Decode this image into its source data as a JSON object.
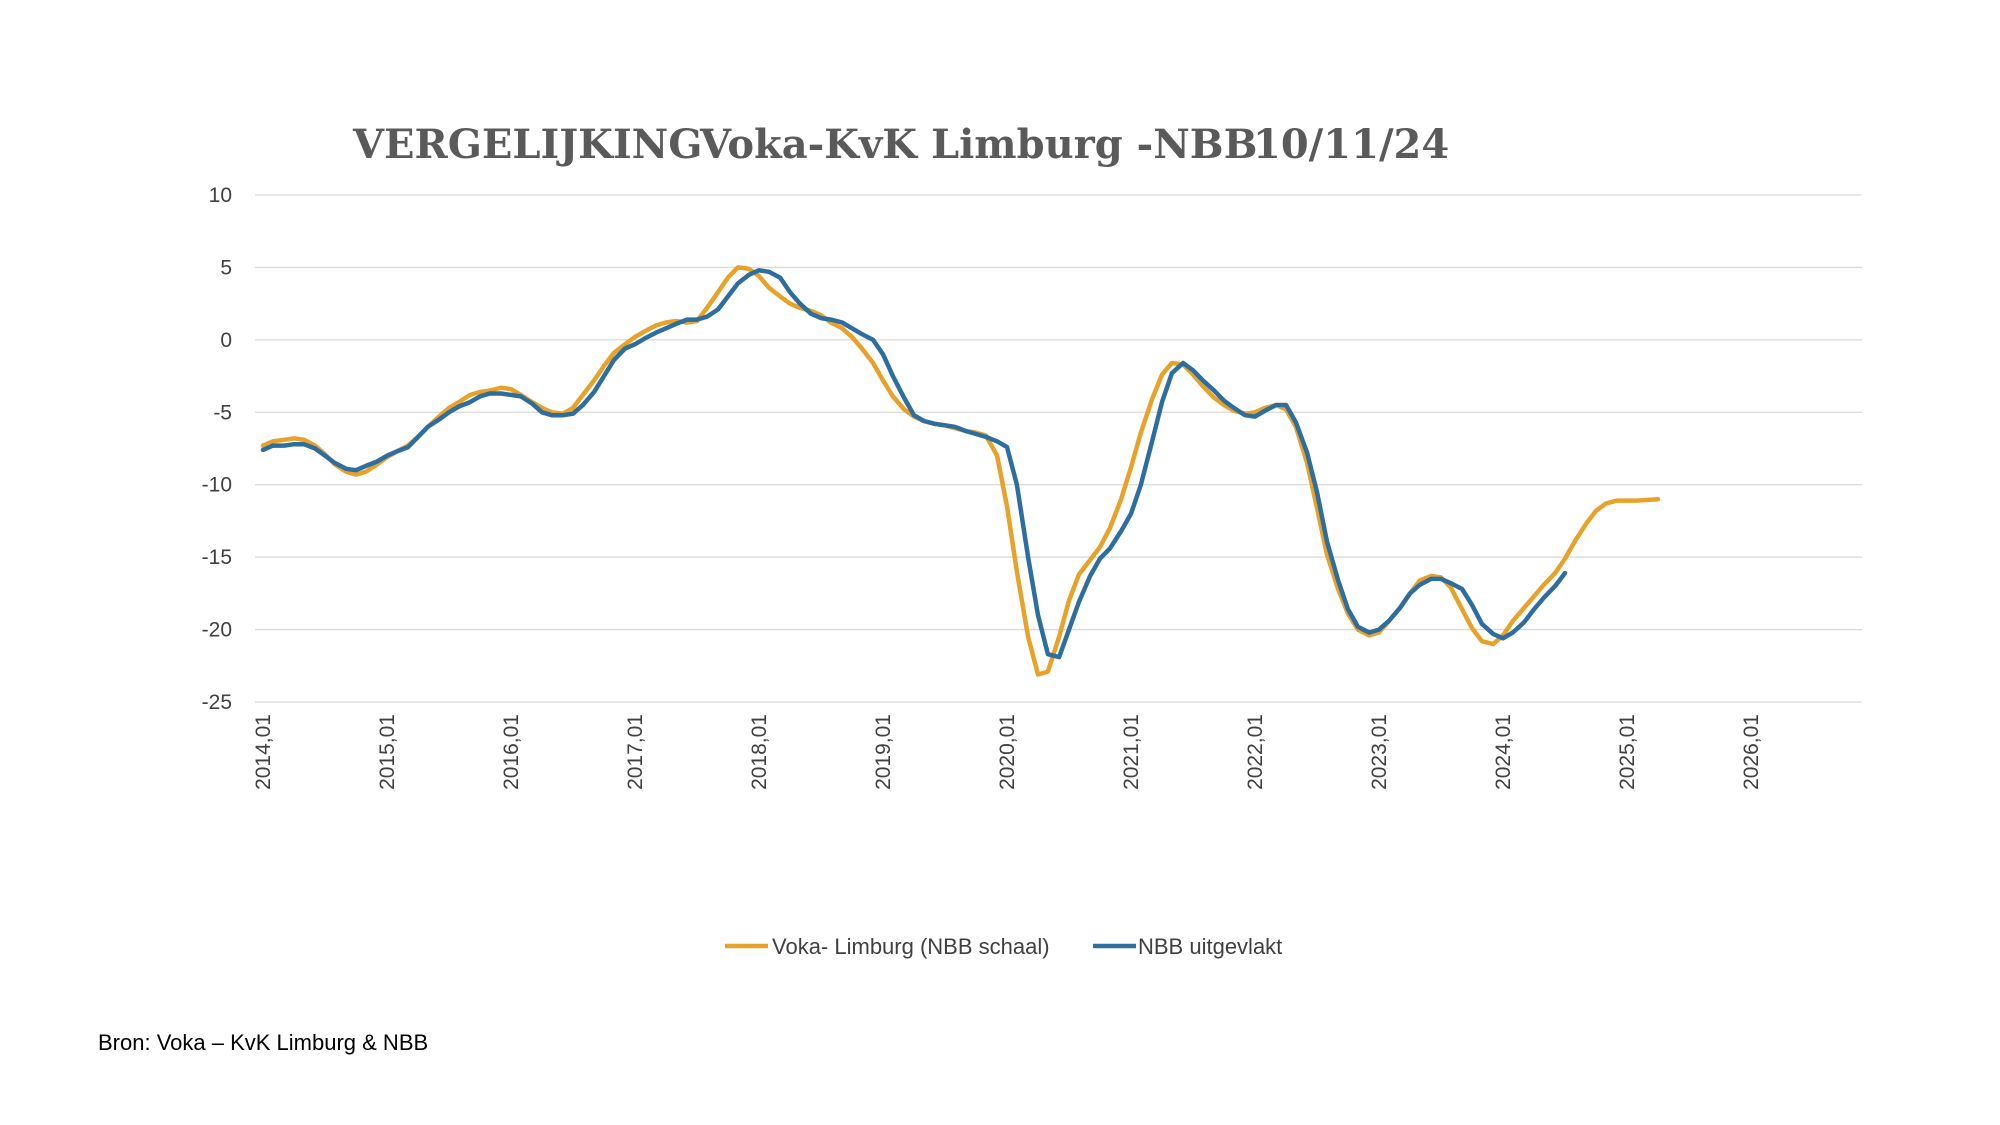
{
  "source": "Bron: Voka – KvK Limburg & NBB",
  "chart_data": {
    "type": "line",
    "title_parts": [
      "VERGELIJKING",
      "Voka-KvK Limburg -NBB",
      "10/11/24"
    ],
    "xlabel": "",
    "ylabel": "",
    "ylim": [
      -25,
      10
    ],
    "yticks": [
      10,
      5,
      0,
      -5,
      -10,
      -15,
      -20,
      -25
    ],
    "x_ticks": [
      "2014,01",
      "2015,01",
      "2016,01",
      "2017,01",
      "2018,01",
      "2019,01",
      "2020,01",
      "2021,01",
      "2022,01",
      "2023,01",
      "2024,01",
      "2025,01",
      "2026,01"
    ],
    "x_range": [
      2014.0,
      2027.0
    ],
    "grid": "horizontal",
    "legend_position": "bottom",
    "colors": {
      "voka": "#e8a22a",
      "nbb": "#2e6e9e",
      "grid": "#d9d9d9",
      "title": "#5a5a5a"
    },
    "series": [
      {
        "name": "Voka- Limburg (NBB schaal)",
        "color": "#e8a22a",
        "points": [
          [
            2014.0,
            -7.3
          ],
          [
            2014.08,
            -7.0
          ],
          [
            2014.17,
            -6.9
          ],
          [
            2014.25,
            -6.8
          ],
          [
            2014.33,
            -6.9
          ],
          [
            2014.42,
            -7.3
          ],
          [
            2014.5,
            -7.9
          ],
          [
            2014.58,
            -8.6
          ],
          [
            2014.67,
            -9.1
          ],
          [
            2014.75,
            -9.3
          ],
          [
            2014.83,
            -9.1
          ],
          [
            2014.92,
            -8.6
          ],
          [
            2015.0,
            -8.1
          ],
          [
            2015.08,
            -7.7
          ],
          [
            2015.17,
            -7.3
          ],
          [
            2015.25,
            -6.7
          ],
          [
            2015.33,
            -6.0
          ],
          [
            2015.42,
            -5.3
          ],
          [
            2015.5,
            -4.7
          ],
          [
            2015.58,
            -4.3
          ],
          [
            2015.67,
            -3.8
          ],
          [
            2015.75,
            -3.6
          ],
          [
            2015.83,
            -3.5
          ],
          [
            2015.92,
            -3.3
          ],
          [
            2016.0,
            -3.4
          ],
          [
            2016.08,
            -3.8
          ],
          [
            2016.17,
            -4.3
          ],
          [
            2016.25,
            -4.7
          ],
          [
            2016.33,
            -5.0
          ],
          [
            2016.42,
            -5.1
          ],
          [
            2016.5,
            -4.7
          ],
          [
            2016.58,
            -3.8
          ],
          [
            2016.67,
            -2.8
          ],
          [
            2016.75,
            -1.8
          ],
          [
            2016.83,
            -0.9
          ],
          [
            2016.92,
            -0.3
          ],
          [
            2017.0,
            0.2
          ],
          [
            2017.08,
            0.6
          ],
          [
            2017.17,
            1.0
          ],
          [
            2017.25,
            1.2
          ],
          [
            2017.33,
            1.3
          ],
          [
            2017.42,
            1.2
          ],
          [
            2017.5,
            1.3
          ],
          [
            2017.58,
            2.2
          ],
          [
            2017.67,
            3.3
          ],
          [
            2017.75,
            4.3
          ],
          [
            2017.83,
            5.0
          ],
          [
            2017.92,
            4.9
          ],
          [
            2018.0,
            4.4
          ],
          [
            2018.08,
            3.6
          ],
          [
            2018.17,
            3.0
          ],
          [
            2018.25,
            2.5
          ],
          [
            2018.33,
            2.2
          ],
          [
            2018.42,
            2.0
          ],
          [
            2018.5,
            1.7
          ],
          [
            2018.58,
            1.2
          ],
          [
            2018.67,
            0.8
          ],
          [
            2018.75,
            0.2
          ],
          [
            2018.83,
            -0.6
          ],
          [
            2018.92,
            -1.6
          ],
          [
            2019.0,
            -2.8
          ],
          [
            2019.08,
            -3.9
          ],
          [
            2019.17,
            -4.8
          ],
          [
            2019.25,
            -5.3
          ],
          [
            2019.33,
            -5.6
          ],
          [
            2019.42,
            -5.8
          ],
          [
            2019.5,
            -5.9
          ],
          [
            2019.58,
            -6.1
          ],
          [
            2019.67,
            -6.3
          ],
          [
            2019.75,
            -6.4
          ],
          [
            2019.83,
            -6.6
          ],
          [
            2019.92,
            -8.0
          ],
          [
            2020.0,
            -11.5
          ],
          [
            2020.08,
            -16.0
          ],
          [
            2020.17,
            -20.5
          ],
          [
            2020.25,
            -23.1
          ],
          [
            2020.33,
            -22.9
          ],
          [
            2020.42,
            -20.5
          ],
          [
            2020.5,
            -18.0
          ],
          [
            2020.58,
            -16.2
          ],
          [
            2020.67,
            -15.2
          ],
          [
            2020.75,
            -14.3
          ],
          [
            2020.83,
            -13.0
          ],
          [
            2020.92,
            -11.0
          ],
          [
            2021.0,
            -8.8
          ],
          [
            2021.08,
            -6.4
          ],
          [
            2021.17,
            -4.1
          ],
          [
            2021.25,
            -2.4
          ],
          [
            2021.33,
            -1.6
          ],
          [
            2021.42,
            -1.7
          ],
          [
            2021.5,
            -2.4
          ],
          [
            2021.58,
            -3.2
          ],
          [
            2021.67,
            -4.0
          ],
          [
            2021.75,
            -4.5
          ],
          [
            2021.83,
            -4.9
          ],
          [
            2021.92,
            -5.1
          ],
          [
            2022.0,
            -5.0
          ],
          [
            2022.08,
            -4.7
          ],
          [
            2022.17,
            -4.5
          ],
          [
            2022.25,
            -4.8
          ],
          [
            2022.33,
            -6.0
          ],
          [
            2022.42,
            -8.5
          ],
          [
            2022.5,
            -11.6
          ],
          [
            2022.58,
            -14.8
          ],
          [
            2022.67,
            -17.2
          ],
          [
            2022.75,
            -18.9
          ],
          [
            2022.83,
            -20.0
          ],
          [
            2022.92,
            -20.4
          ],
          [
            2023.0,
            -20.2
          ],
          [
            2023.08,
            -19.4
          ],
          [
            2023.17,
            -18.5
          ],
          [
            2023.25,
            -17.5
          ],
          [
            2023.33,
            -16.6
          ],
          [
            2023.42,
            -16.3
          ],
          [
            2023.5,
            -16.4
          ],
          [
            2023.58,
            -17.1
          ],
          [
            2023.67,
            -18.6
          ],
          [
            2023.75,
            -19.9
          ],
          [
            2023.83,
            -20.8
          ],
          [
            2023.92,
            -21.0
          ],
          [
            2024.0,
            -20.4
          ],
          [
            2024.08,
            -19.4
          ],
          [
            2024.17,
            -18.5
          ],
          [
            2024.25,
            -17.7
          ],
          [
            2024.33,
            -16.9
          ],
          [
            2024.42,
            -16.1
          ],
          [
            2024.5,
            -15.1
          ],
          [
            2024.58,
            -13.9
          ],
          [
            2024.67,
            -12.7
          ],
          [
            2024.75,
            -11.8
          ],
          [
            2024.83,
            -11.3
          ],
          [
            2024.92,
            -11.1
          ],
          [
            2025.0,
            -11.1
          ],
          [
            2025.08,
            -11.1
          ],
          [
            2025.17,
            -11.05
          ],
          [
            2025.25,
            -11.0
          ]
        ]
      },
      {
        "name": "NBB  uitgevlakt",
        "color": "#2e6e9e",
        "points": [
          [
            2014.0,
            -7.6
          ],
          [
            2014.08,
            -7.3
          ],
          [
            2014.17,
            -7.3
          ],
          [
            2014.25,
            -7.2
          ],
          [
            2014.33,
            -7.2
          ],
          [
            2014.42,
            -7.5
          ],
          [
            2014.5,
            -8.0
          ],
          [
            2014.58,
            -8.5
          ],
          [
            2014.67,
            -8.9
          ],
          [
            2014.75,
            -9.0
          ],
          [
            2014.83,
            -8.7
          ],
          [
            2014.92,
            -8.4
          ],
          [
            2015.0,
            -8.0
          ],
          [
            2015.08,
            -7.7
          ],
          [
            2015.17,
            -7.4
          ],
          [
            2015.25,
            -6.7
          ],
          [
            2015.33,
            -6.0
          ],
          [
            2015.42,
            -5.5
          ],
          [
            2015.5,
            -5.0
          ],
          [
            2015.58,
            -4.6
          ],
          [
            2015.67,
            -4.3
          ],
          [
            2015.75,
            -3.9
          ],
          [
            2015.83,
            -3.7
          ],
          [
            2015.92,
            -3.7
          ],
          [
            2016.0,
            -3.8
          ],
          [
            2016.08,
            -3.9
          ],
          [
            2016.17,
            -4.4
          ],
          [
            2016.25,
            -5.0
          ],
          [
            2016.33,
            -5.2
          ],
          [
            2016.42,
            -5.2
          ],
          [
            2016.5,
            -5.1
          ],
          [
            2016.58,
            -4.5
          ],
          [
            2016.67,
            -3.6
          ],
          [
            2016.75,
            -2.5
          ],
          [
            2016.83,
            -1.4
          ],
          [
            2016.92,
            -0.6
          ],
          [
            2017.0,
            -0.3
          ],
          [
            2017.08,
            0.1
          ],
          [
            2017.17,
            0.5
          ],
          [
            2017.25,
            0.8
          ],
          [
            2017.33,
            1.1
          ],
          [
            2017.42,
            1.4
          ],
          [
            2017.5,
            1.4
          ],
          [
            2017.58,
            1.6
          ],
          [
            2017.67,
            2.1
          ],
          [
            2017.75,
            3.0
          ],
          [
            2017.83,
            3.9
          ],
          [
            2017.92,
            4.5
          ],
          [
            2018.0,
            4.8
          ],
          [
            2018.08,
            4.7
          ],
          [
            2018.17,
            4.3
          ],
          [
            2018.25,
            3.3
          ],
          [
            2018.33,
            2.5
          ],
          [
            2018.42,
            1.8
          ],
          [
            2018.5,
            1.5
          ],
          [
            2018.58,
            1.4
          ],
          [
            2018.67,
            1.2
          ],
          [
            2018.75,
            0.8
          ],
          [
            2018.83,
            0.4
          ],
          [
            2018.92,
            0.0
          ],
          [
            2019.0,
            -1.0
          ],
          [
            2019.08,
            -2.5
          ],
          [
            2019.17,
            -4.0
          ],
          [
            2019.25,
            -5.2
          ],
          [
            2019.33,
            -5.6
          ],
          [
            2019.42,
            -5.8
          ],
          [
            2019.5,
            -5.9
          ],
          [
            2019.58,
            -6.0
          ],
          [
            2019.67,
            -6.3
          ],
          [
            2019.75,
            -6.5
          ],
          [
            2019.83,
            -6.7
          ],
          [
            2019.92,
            -7.0
          ],
          [
            2020.0,
            -7.4
          ],
          [
            2020.08,
            -10.0
          ],
          [
            2020.17,
            -15.0
          ],
          [
            2020.25,
            -19.0
          ],
          [
            2020.33,
            -21.7
          ],
          [
            2020.42,
            -21.9
          ],
          [
            2020.5,
            -20.0
          ],
          [
            2020.58,
            -18.1
          ],
          [
            2020.67,
            -16.3
          ],
          [
            2020.75,
            -15.1
          ],
          [
            2020.83,
            -14.4
          ],
          [
            2020.92,
            -13.2
          ],
          [
            2021.0,
            -12.0
          ],
          [
            2021.08,
            -10.0
          ],
          [
            2021.17,
            -7.0
          ],
          [
            2021.25,
            -4.3
          ],
          [
            2021.33,
            -2.3
          ],
          [
            2021.42,
            -1.6
          ],
          [
            2021.5,
            -2.1
          ],
          [
            2021.58,
            -2.8
          ],
          [
            2021.67,
            -3.5
          ],
          [
            2021.75,
            -4.2
          ],
          [
            2021.83,
            -4.7
          ],
          [
            2021.92,
            -5.2
          ],
          [
            2022.0,
            -5.3
          ],
          [
            2022.08,
            -4.9
          ],
          [
            2022.17,
            -4.5
          ],
          [
            2022.25,
            -4.5
          ],
          [
            2022.33,
            -5.7
          ],
          [
            2022.42,
            -7.8
          ],
          [
            2022.5,
            -10.5
          ],
          [
            2022.58,
            -13.9
          ],
          [
            2022.67,
            -16.6
          ],
          [
            2022.75,
            -18.6
          ],
          [
            2022.83,
            -19.8
          ],
          [
            2022.92,
            -20.2
          ],
          [
            2023.0,
            -20.0
          ],
          [
            2023.08,
            -19.4
          ],
          [
            2023.17,
            -18.5
          ],
          [
            2023.25,
            -17.5
          ],
          [
            2023.33,
            -16.9
          ],
          [
            2023.42,
            -16.5
          ],
          [
            2023.5,
            -16.5
          ],
          [
            2023.58,
            -16.8
          ],
          [
            2023.67,
            -17.2
          ],
          [
            2023.75,
            -18.3
          ],
          [
            2023.83,
            -19.6
          ],
          [
            2023.92,
            -20.3
          ],
          [
            2024.0,
            -20.6
          ],
          [
            2024.08,
            -20.2
          ],
          [
            2024.17,
            -19.5
          ],
          [
            2024.25,
            -18.6
          ],
          [
            2024.33,
            -17.8
          ],
          [
            2024.42,
            -17.0
          ],
          [
            2024.5,
            -16.1
          ]
        ]
      }
    ]
  }
}
